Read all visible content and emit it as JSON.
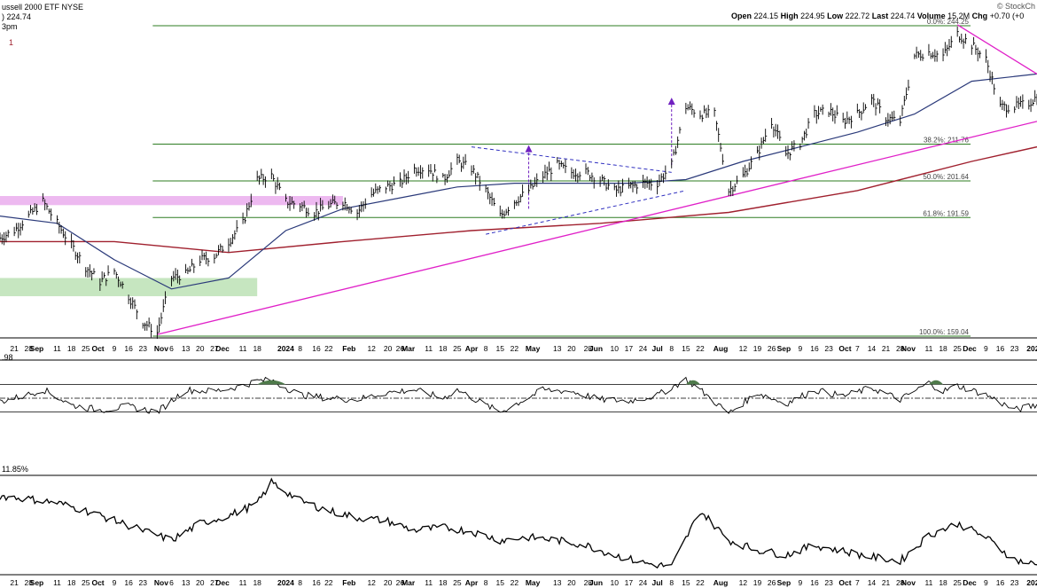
{
  "header": {
    "title": "ussell 2000 ETF",
    "exchange": "NYSE",
    "credit": "© StockCh",
    "quote": {
      "open_label": "Open",
      "open": "224.15",
      "high_label": "High",
      "high": "224.95",
      "low_label": "Low",
      "low": "222.72",
      "last_label": "Last",
      "last": "224.74",
      "volume_label": "Volume",
      "volume": "15.2M",
      "chg_label": "Chg",
      "chg": "+0.70 (+0"
    },
    "left_line1": ") 224.74",
    "left_line2": "3pm",
    "left_line3": "1"
  },
  "colors": {
    "price": "#000000",
    "ma_short": "#2b3a7a",
    "ma_long": "#a0202e",
    "trendline": "#e020c8",
    "fib": "#2e7d22",
    "triangle": "#3030c0",
    "arrow": "#7020c0",
    "green_zone": "#b8e0b0",
    "purple_zone": "#e8a8ec",
    "grid": "#000000"
  },
  "chart_data": [
    {
      "type": "line",
      "panel": "price",
      "ylim": [
        159.04,
        244.25
      ],
      "xlim": [
        "2023-08-14",
        "2025-01-03"
      ],
      "series": [],
      "fib_levels": [
        {
          "label": "0.0%: 244.25",
          "value": 244.25
        },
        {
          "label": "38.2%: 211.76",
          "value": 211.76
        },
        {
          "label": "50.0%: 201.64",
          "value": 201.64
        },
        {
          "label": "61.8%: 191.59",
          "value": 191.59
        },
        {
          "label": "100.0%: 159.04",
          "value": 159.04
        }
      ],
      "price_path": [
        [
          "2023-08-14",
          186
        ],
        [
          "2023-08-21",
          188
        ],
        [
          "2023-08-28",
          192
        ],
        [
          "2023-09-04",
          196
        ],
        [
          "2023-09-11",
          190
        ],
        [
          "2023-09-18",
          184
        ],
        [
          "2023-09-25",
          178
        ],
        [
          "2023-10-02",
          174
        ],
        [
          "2023-10-09",
          177
        ],
        [
          "2023-10-16",
          170
        ],
        [
          "2023-10-23",
          163
        ],
        [
          "2023-10-30",
          160
        ],
        [
          "2023-11-06",
          175
        ],
        [
          "2023-11-13",
          176
        ],
        [
          "2023-11-20",
          180
        ],
        [
          "2023-11-27",
          181
        ],
        [
          "2023-12-04",
          185
        ],
        [
          "2023-12-11",
          190
        ],
        [
          "2023-12-18",
          202
        ],
        [
          "2023-12-25",
          203
        ],
        [
          "2024-01-01",
          196
        ],
        [
          "2024-01-08",
          195
        ],
        [
          "2024-01-15",
          193
        ],
        [
          "2024-01-22",
          195
        ],
        [
          "2024-01-29",
          196
        ],
        [
          "2024-02-05",
          193
        ],
        [
          "2024-02-12",
          198
        ],
        [
          "2024-02-19",
          200
        ],
        [
          "2024-02-26",
          201
        ],
        [
          "2024-03-04",
          205
        ],
        [
          "2024-03-11",
          205
        ],
        [
          "2024-03-18",
          202
        ],
        [
          "2024-03-25",
          207
        ],
        [
          "2024-04-01",
          205
        ],
        [
          "2024-04-08",
          199
        ],
        [
          "2024-04-15",
          192
        ],
        [
          "2024-04-22",
          196
        ],
        [
          "2024-04-29",
          199
        ],
        [
          "2024-05-06",
          203
        ],
        [
          "2024-05-13",
          206
        ],
        [
          "2024-05-20",
          204
        ],
        [
          "2024-05-27",
          204
        ],
        [
          "2024-06-03",
          202
        ],
        [
          "2024-06-10",
          199
        ],
        [
          "2024-06-17",
          200
        ],
        [
          "2024-06-24",
          201
        ],
        [
          "2024-07-01",
          201
        ],
        [
          "2024-07-08",
          206
        ],
        [
          "2024-07-15",
          222
        ],
        [
          "2024-07-22",
          220
        ],
        [
          "2024-07-29",
          220
        ],
        [
          "2024-08-05",
          199
        ],
        [
          "2024-08-12",
          203
        ],
        [
          "2024-08-19",
          209
        ],
        [
          "2024-08-26",
          218
        ],
        [
          "2024-09-02",
          209
        ],
        [
          "2024-09-09",
          212
        ],
        [
          "2024-09-16",
          220
        ],
        [
          "2024-09-23",
          221
        ],
        [
          "2024-09-30",
          218
        ],
        [
          "2024-10-07",
          220
        ],
        [
          "2024-10-14",
          224
        ],
        [
          "2024-10-21",
          219
        ],
        [
          "2024-10-28",
          218
        ],
        [
          "2024-11-04",
          236
        ],
        [
          "2024-11-11",
          237
        ],
        [
          "2024-11-18",
          236
        ],
        [
          "2024-11-25",
          242
        ],
        [
          "2024-12-02",
          239
        ],
        [
          "2024-12-09",
          235
        ],
        [
          "2024-12-16",
          222
        ],
        [
          "2024-12-23",
          222
        ],
        [
          "2024-12-30",
          223
        ],
        [
          "2025-01-03",
          224.74
        ]
      ],
      "ma_short_path": [
        [
          "2023-08-14",
          192
        ],
        [
          "2023-09-11",
          190
        ],
        [
          "2023-10-09",
          180
        ],
        [
          "2023-11-06",
          172
        ],
        [
          "2023-12-04",
          175
        ],
        [
          "2024-01-01",
          188
        ],
        [
          "2024-01-29",
          194
        ],
        [
          "2024-02-26",
          197
        ],
        [
          "2024-03-25",
          200
        ],
        [
          "2024-04-22",
          201
        ],
        [
          "2024-05-20",
          201
        ],
        [
          "2024-06-17",
          201
        ],
        [
          "2024-07-15",
          202
        ],
        [
          "2024-08-12",
          207
        ],
        [
          "2024-09-09",
          211
        ],
        [
          "2024-10-07",
          215
        ],
        [
          "2024-11-04",
          220
        ],
        [
          "2024-12-02",
          229
        ],
        [
          "2025-01-03",
          231
        ]
      ],
      "ma_long_path": [
        [
          "2023-08-14",
          185
        ],
        [
          "2023-10-09",
          185
        ],
        [
          "2023-12-04",
          182
        ],
        [
          "2024-01-29",
          185
        ],
        [
          "2024-04-01",
          188
        ],
        [
          "2024-06-03",
          190
        ],
        [
          "2024-08-05",
          193
        ],
        [
          "2024-10-07",
          199
        ],
        [
          "2024-12-02",
          207
        ],
        [
          "2025-01-03",
          211
        ]
      ],
      "trendlines": [
        {
          "kind": "support",
          "from": [
            "2023-10-30",
            159.5
          ],
          "to": [
            "2025-01-03",
            218
          ]
        },
        {
          "kind": "resistance",
          "from": [
            "2024-11-25",
            244.5
          ],
          "to": [
            "2025-01-03",
            231
          ]
        }
      ],
      "triangle": {
        "upper": [
          [
            "2024-04-01",
            211
          ],
          [
            "2024-07-08",
            204
          ]
        ],
        "lower": [
          [
            "2024-04-08",
            187
          ],
          [
            "2024-07-15",
            199
          ]
        ]
      },
      "arrows": [
        {
          "at": "2024-04-29",
          "from": 194,
          "to": 211
        },
        {
          "at": "2024-07-08",
          "from": 206,
          "to": 224
        }
      ],
      "zones": [
        {
          "kind": "green",
          "from": "2023-08-14",
          "to": "2023-12-18",
          "low": 170,
          "high": 175
        },
        {
          "kind": "purple",
          "from": "2023-08-14",
          "to": "2024-01-29",
          "low": 195,
          "high": 197.5
        }
      ],
      "x_ticks": [
        {
          "date": "2023-08-21",
          "label": "21"
        },
        {
          "date": "2023-08-28",
          "label": "28"
        },
        {
          "date": "2023-09-01",
          "label": "Sep"
        },
        {
          "date": "2023-09-11",
          "label": "11"
        },
        {
          "date": "2023-09-18",
          "label": "18"
        },
        {
          "date": "2023-09-25",
          "label": "25"
        },
        {
          "date": "2023-10-01",
          "label": "Oct"
        },
        {
          "date": "2023-10-09",
          "label": "9"
        },
        {
          "date": "2023-10-16",
          "label": "16"
        },
        {
          "date": "2023-10-23",
          "label": "23"
        },
        {
          "date": "2023-11-01",
          "label": "Nov"
        },
        {
          "date": "2023-11-06",
          "label": "6"
        },
        {
          "date": "2023-11-13",
          "label": "13"
        },
        {
          "date": "2023-11-20",
          "label": "20"
        },
        {
          "date": "2023-11-27",
          "label": "27"
        },
        {
          "date": "2023-12-01",
          "label": "Dec"
        },
        {
          "date": "2023-12-11",
          "label": "11"
        },
        {
          "date": "2023-12-18",
          "label": "18"
        },
        {
          "date": "2024-01-01",
          "label": "2024"
        },
        {
          "date": "2024-01-08",
          "label": "8"
        },
        {
          "date": "2024-01-16",
          "label": "16"
        },
        {
          "date": "2024-01-22",
          "label": "22"
        },
        {
          "date": "2024-02-01",
          "label": "Feb"
        },
        {
          "date": "2024-02-12",
          "label": "12"
        },
        {
          "date": "2024-02-20",
          "label": "20"
        },
        {
          "date": "2024-02-26",
          "label": "26"
        },
        {
          "date": "2024-03-01",
          "label": "Mar"
        },
        {
          "date": "2024-03-11",
          "label": "11"
        },
        {
          "date": "2024-03-18",
          "label": "18"
        },
        {
          "date": "2024-03-25",
          "label": "25"
        },
        {
          "date": "2024-04-01",
          "label": "Apr"
        },
        {
          "date": "2024-04-08",
          "label": "8"
        },
        {
          "date": "2024-04-15",
          "label": "15"
        },
        {
          "date": "2024-04-22",
          "label": "22"
        },
        {
          "date": "2024-05-01",
          "label": "May"
        },
        {
          "date": "2024-05-13",
          "label": "13"
        },
        {
          "date": "2024-05-20",
          "label": "20"
        },
        {
          "date": "2024-05-28",
          "label": "28"
        },
        {
          "date": "2024-06-01",
          "label": "Jun"
        },
        {
          "date": "2024-06-10",
          "label": "10"
        },
        {
          "date": "2024-06-17",
          "label": "17"
        },
        {
          "date": "2024-06-24",
          "label": "24"
        },
        {
          "date": "2024-07-01",
          "label": "Jul"
        },
        {
          "date": "2024-07-08",
          "label": "8"
        },
        {
          "date": "2024-07-15",
          "label": "15"
        },
        {
          "date": "2024-07-22",
          "label": "22"
        },
        {
          "date": "2024-08-01",
          "label": "Aug"
        },
        {
          "date": "2024-08-12",
          "label": "12"
        },
        {
          "date": "2024-08-19",
          "label": "19"
        },
        {
          "date": "2024-08-26",
          "label": "26"
        },
        {
          "date": "2024-09-01",
          "label": "Sep"
        },
        {
          "date": "2024-09-09",
          "label": "9"
        },
        {
          "date": "2024-09-16",
          "label": "16"
        },
        {
          "date": "2024-09-23",
          "label": "23"
        },
        {
          "date": "2024-10-01",
          "label": "Oct"
        },
        {
          "date": "2024-10-07",
          "label": "7"
        },
        {
          "date": "2024-10-14",
          "label": "14"
        },
        {
          "date": "2024-10-21",
          "label": "21"
        },
        {
          "date": "2024-10-28",
          "label": "28"
        },
        {
          "date": "2024-11-01",
          "label": "Nov"
        },
        {
          "date": "2024-11-11",
          "label": "11"
        },
        {
          "date": "2024-11-18",
          "label": "18"
        },
        {
          "date": "2024-11-25",
          "label": "25"
        },
        {
          "date": "2024-12-01",
          "label": "Dec"
        },
        {
          "date": "2024-12-09",
          "label": "9"
        },
        {
          "date": "2024-12-16",
          "label": "16"
        },
        {
          "date": "2024-12-23",
          "label": "23"
        },
        {
          "date": "2025-01-01",
          "label": "202"
        }
      ]
    },
    {
      "type": "line",
      "panel": "oscillator",
      "label": ".98",
      "ylim": [
        0,
        100
      ],
      "reference_levels": [
        30,
        50,
        70
      ],
      "path": [
        [
          "2023-08-14",
          45
        ],
        [
          "2023-08-28",
          55
        ],
        [
          "2023-09-04",
          63
        ],
        [
          "2023-09-18",
          40
        ],
        [
          "2023-10-02",
          33
        ],
        [
          "2023-10-16",
          38
        ],
        [
          "2023-10-30",
          30
        ],
        [
          "2023-11-13",
          62
        ],
        [
          "2023-11-27",
          60
        ],
        [
          "2023-12-11",
          68
        ],
        [
          "2023-12-18",
          75
        ],
        [
          "2023-12-25",
          76
        ],
        [
          "2024-01-08",
          55
        ],
        [
          "2024-01-22",
          50
        ],
        [
          "2024-02-05",
          48
        ],
        [
          "2024-02-19",
          58
        ],
        [
          "2024-03-04",
          62
        ],
        [
          "2024-03-18",
          50
        ],
        [
          "2024-03-25",
          62
        ],
        [
          "2024-04-08",
          40
        ],
        [
          "2024-04-15",
          30
        ],
        [
          "2024-05-06",
          62
        ],
        [
          "2024-05-20",
          60
        ],
        [
          "2024-06-03",
          48
        ],
        [
          "2024-06-17",
          46
        ],
        [
          "2024-07-01",
          54
        ],
        [
          "2024-07-15",
          77
        ],
        [
          "2024-07-22",
          62
        ],
        [
          "2024-08-05",
          28
        ],
        [
          "2024-08-19",
          58
        ],
        [
          "2024-09-02",
          42
        ],
        [
          "2024-09-16",
          62
        ],
        [
          "2024-09-30",
          53
        ],
        [
          "2024-10-14",
          65
        ],
        [
          "2024-10-28",
          48
        ],
        [
          "2024-11-11",
          72
        ],
        [
          "2024-11-18",
          60
        ],
        [
          "2024-11-25",
          68
        ],
        [
          "2024-12-09",
          55
        ],
        [
          "2024-12-23",
          33
        ],
        [
          "2025-01-03",
          40
        ]
      ]
    },
    {
      "type": "line",
      "panel": "breadth",
      "label": "11.85%",
      "ylim": [
        0,
        100
      ],
      "path": [
        [
          "2023-08-14",
          80
        ],
        [
          "2023-08-28",
          77
        ],
        [
          "2023-09-11",
          73
        ],
        [
          "2023-09-25",
          65
        ],
        [
          "2023-10-09",
          55
        ],
        [
          "2023-10-23",
          45
        ],
        [
          "2023-11-06",
          35
        ],
        [
          "2023-11-20",
          52
        ],
        [
          "2023-12-04",
          60
        ],
        [
          "2023-12-18",
          72
        ],
        [
          "2023-12-25",
          94
        ],
        [
          "2024-01-08",
          75
        ],
        [
          "2024-01-22",
          65
        ],
        [
          "2024-02-05",
          58
        ],
        [
          "2024-02-19",
          55
        ],
        [
          "2024-03-04",
          45
        ],
        [
          "2024-03-18",
          48
        ],
        [
          "2024-04-01",
          44
        ],
        [
          "2024-04-15",
          35
        ],
        [
          "2024-04-29",
          38
        ],
        [
          "2024-05-13",
          35
        ],
        [
          "2024-05-27",
          30
        ],
        [
          "2024-06-10",
          20
        ],
        [
          "2024-06-24",
          12
        ],
        [
          "2024-07-08",
          8
        ],
        [
          "2024-07-22",
          65
        ],
        [
          "2024-08-05",
          35
        ],
        [
          "2024-08-19",
          25
        ],
        [
          "2024-09-02",
          20
        ],
        [
          "2024-09-16",
          30
        ],
        [
          "2024-09-30",
          24
        ],
        [
          "2024-10-14",
          18
        ],
        [
          "2024-10-28",
          14
        ],
        [
          "2024-11-11",
          40
        ],
        [
          "2024-11-25",
          52
        ],
        [
          "2024-12-09",
          38
        ],
        [
          "2024-12-23",
          15
        ],
        [
          "2025-01-03",
          10
        ]
      ]
    }
  ]
}
